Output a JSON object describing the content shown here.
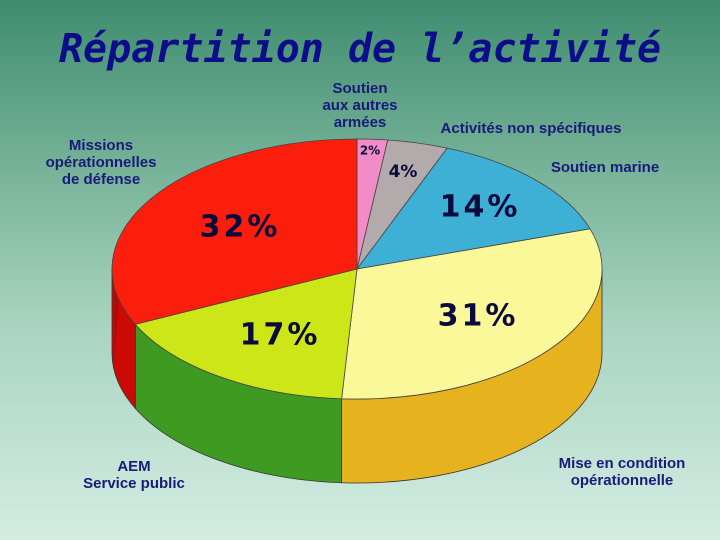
{
  "title": "Répartition de l’activité",
  "chart_data": {
    "type": "pie",
    "three_d": true,
    "categories": [
      "Soutien aux autres armées",
      "Activités non spécifiques",
      "Soutien marine",
      "Mise en condition opérationnelle",
      "AEM Service public",
      "Missions opérationnelles de défense"
    ],
    "values": [
      2,
      4,
      14,
      31,
      17,
      32
    ],
    "value_labels": [
      "2%",
      "4%",
      "14%",
      "31%",
      "17%",
      "32%"
    ],
    "colors": [
      "#f28cc6",
      "#b3abab",
      "#3eb0d6",
      "#fbf89a",
      "#cde617",
      "#fb1e0d"
    ],
    "side_colors": [
      "#c8609f",
      "#8a8282",
      "#2a86a6",
      "#e6b21e",
      "#3f9a22",
      "#cc0a05"
    ],
    "legend_placement": "labels around pie"
  },
  "labels": {
    "soutien_armees": "Soutien\naux autres\narmées",
    "activites": "Activités non spécifiques",
    "soutien_marine": "Soutien marine",
    "mise_condition": "Mise en condition\nopérationnelle",
    "aem": "AEM\nService public",
    "missions": "Missions\nopérationnelles\nde défense"
  }
}
